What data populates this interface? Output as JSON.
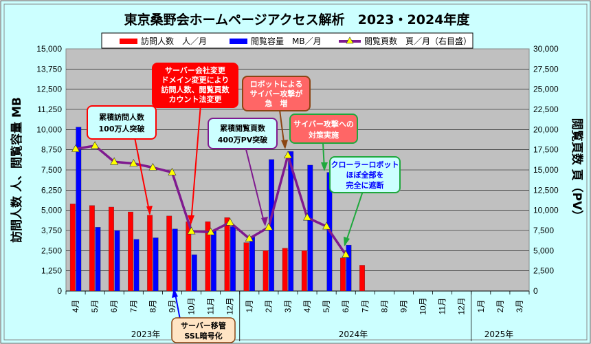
{
  "chart_data": {
    "type": "bar",
    "title": "東京桑野会ホームページアクセス解析　2023・2024年度",
    "categories": [
      "4月",
      "5月",
      "6月",
      "7月",
      "8月",
      "9月",
      "10月",
      "11月",
      "12月",
      "1月",
      "2月",
      "3月",
      "4月",
      "5月",
      "6月",
      "7月",
      "8月",
      "9月",
      "10月",
      "11月",
      "12月",
      "1月",
      "2月",
      "3月"
    ],
    "year_labels": [
      "2023年",
      "2024年",
      "2025年"
    ],
    "ylabel_left": "訪問人数 人、閲覧容量 MB",
    "ylabel_right": "閲覧頁数 頁（PV）",
    "ylim_left": [
      0,
      15000
    ],
    "ylim_right": [
      0,
      30000
    ],
    "yticks_left": [
      "0",
      "1,250",
      "2,500",
      "3,750",
      "5,000",
      "6,250",
      "7,500",
      "8,750",
      "10,000",
      "11,250",
      "12,500",
      "13,750",
      "15,000"
    ],
    "yticks_right": [
      "0",
      "2,500",
      "5,000",
      "7,500",
      "10,000",
      "12,500",
      "15,000",
      "17,500",
      "20,000",
      "22,500",
      "25,000",
      "27,500",
      "30,000"
    ],
    "series": [
      {
        "name": "訪問人数　人／月",
        "axis": "left",
        "color": "#ff0000",
        "values": [
          5400,
          5300,
          5200,
          4900,
          4700,
          4650,
          4300,
          4300,
          4550,
          3000,
          2500,
          2650,
          2500,
          null,
          2050,
          1600,
          null,
          null,
          null,
          null,
          null,
          null,
          null,
          null
        ]
      },
      {
        "name": "閲覧容量　MB／月",
        "axis": "left",
        "color": "#0000ff",
        "values": [
          10150,
          3950,
          3750,
          3200,
          3300,
          3850,
          2250,
          3750,
          4000,
          3350,
          8150,
          8650,
          7800,
          7350,
          2850,
          null,
          null,
          null,
          null,
          null,
          null,
          null,
          null,
          null
        ]
      },
      {
        "name": "閲覧頁数　頁／月（右目盛）",
        "axis": "right",
        "color": "#7f1a8f",
        "values": [
          17600,
          18000,
          16000,
          15800,
          15300,
          14700,
          7400,
          7300,
          8500,
          6500,
          7900,
          16800,
          9100,
          8000,
          4500,
          null,
          null,
          null,
          null,
          null,
          null,
          null,
          null,
          null
        ]
      }
    ],
    "annotations": [
      {
        "id": "ann-1",
        "lines": [
          "累積訪問人数",
          "100万人突破"
        ]
      },
      {
        "id": "ann-2",
        "lines": [
          "サーバー会社変更",
          "ドメイン変更により",
          "訪問人数、閲覧頁数",
          "カウント法変更"
        ]
      },
      {
        "id": "ann-3",
        "lines": [
          "ロボットによる",
          "サイバー攻撃が",
          "急　増"
        ]
      },
      {
        "id": "ann-4",
        "lines": [
          "累積閲覧頁数",
          "400万PV突破"
        ]
      },
      {
        "id": "ann-5",
        "lines": [
          "サイバー攻撃への",
          "対策実施"
        ]
      },
      {
        "id": "ann-6",
        "lines": [
          "クローラーロボット",
          "ほぼ全部を",
          "完全に遮断"
        ]
      },
      {
        "id": "ann-7",
        "lines": [
          "サーバー移管",
          "SSL暗号化"
        ]
      }
    ],
    "grid": true
  }
}
